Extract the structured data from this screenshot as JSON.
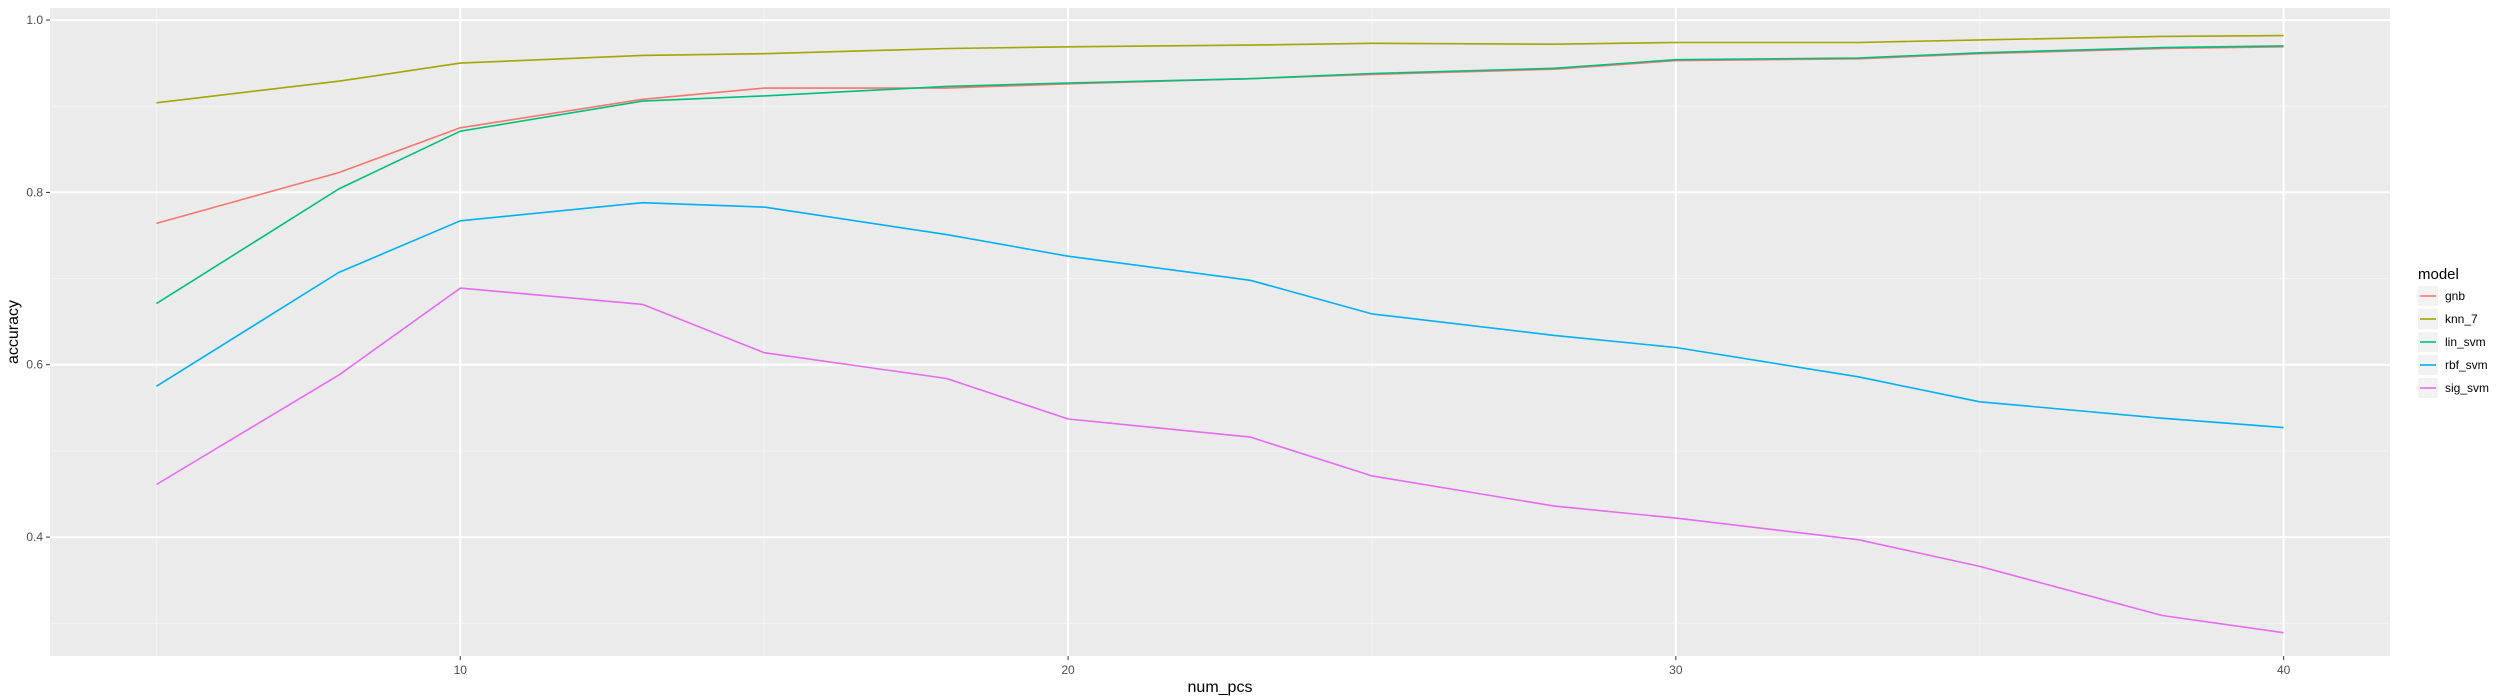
{
  "chart_data": {
    "type": "line",
    "xlabel": "num_pcs",
    "ylabel": "accuracy",
    "xlim": [
      3.25,
      41.75
    ],
    "ylim": [
      0.262,
      1.014
    ],
    "x_ticks": [
      10,
      20,
      30,
      40
    ],
    "x_tick_labels": [
      "10",
      "20",
      "30",
      "40"
    ],
    "y_ticks": [
      0.4,
      0.6,
      0.8,
      1.0
    ],
    "y_tick_labels": [
      "0.4",
      "0.6",
      "0.8",
      "1.0"
    ],
    "grid": true,
    "legend": {
      "title": "model",
      "position": "right"
    },
    "x": [
      5,
      8,
      10,
      13,
      15,
      18,
      20,
      23,
      25,
      28,
      30,
      33,
      35,
      38,
      40
    ],
    "series": [
      {
        "name": "gnb",
        "color": "#F8766D",
        "values": [
          0.764,
          0.823,
          0.875,
          0.908,
          0.921,
          0.921,
          0.926,
          0.932,
          0.937,
          0.943,
          0.953,
          0.955,
          0.961,
          0.967,
          0.969
        ]
      },
      {
        "name": "knn_7",
        "color": "#A3A500",
        "values": [
          0.904,
          0.929,
          0.95,
          0.959,
          0.961,
          0.967,
          0.969,
          0.971,
          0.973,
          0.972,
          0.974,
          0.974,
          0.977,
          0.981,
          0.982
        ]
      },
      {
        "name": "lin_svm",
        "color": "#00BF7D",
        "values": [
          0.671,
          0.804,
          0.871,
          0.906,
          0.912,
          0.923,
          0.927,
          0.932,
          0.938,
          0.944,
          0.954,
          0.956,
          0.962,
          0.968,
          0.97
        ]
      },
      {
        "name": "rbf_svm",
        "color": "#00B0F6",
        "values": [
          0.575,
          0.707,
          0.767,
          0.788,
          0.783,
          0.751,
          0.726,
          0.698,
          0.659,
          0.634,
          0.62,
          0.586,
          0.557,
          0.538,
          0.527
        ]
      },
      {
        "name": "sig_svm",
        "color": "#E76BF3",
        "values": [
          0.461,
          0.588,
          0.689,
          0.67,
          0.614,
          0.584,
          0.537,
          0.516,
          0.471,
          0.436,
          0.422,
          0.397,
          0.366,
          0.309,
          0.289
        ]
      }
    ]
  }
}
